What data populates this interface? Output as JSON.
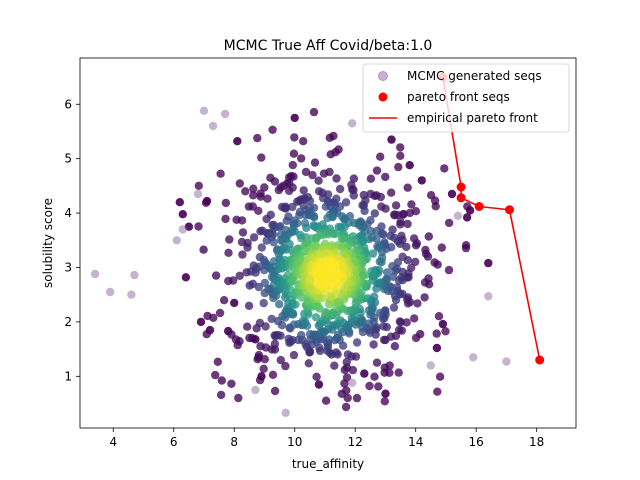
{
  "chart_data": {
    "type": "scatter",
    "title": "MCMC True Aff Covid/beta:1.0",
    "xlabel": "true_affinity",
    "ylabel": "solubility score",
    "xlim": [
      2.9,
      19.3
    ],
    "ylim": [
      0.05,
      6.85
    ],
    "xticks": [
      "4",
      "6",
      "8",
      "10",
      "12",
      "14",
      "16",
      "18"
    ],
    "xtick_values": [
      4,
      6,
      8,
      10,
      12,
      14,
      16,
      18
    ],
    "yticks": [
      "1",
      "2",
      "3",
      "4",
      "5",
      "6"
    ],
    "ytick_values": [
      1,
      2,
      3,
      4,
      5,
      6
    ],
    "grid": false,
    "legend_position": "top-right",
    "colormap": [
      "#440154",
      "#3b528b",
      "#21918c",
      "#5ec962",
      "#fde725"
    ],
    "generated_colormap_note": "",
    "series": [
      {
        "name": "MCMC generated seqs",
        "kind": "density-scatter",
        "legend_color": "#8e6a9f",
        "center": [
          11.0,
          2.9
        ],
        "spread": [
          1.6,
          0.95
        ],
        "count": 900,
        "outliers": [
          [
            3.4,
            2.88
          ],
          [
            3.9,
            2.55
          ],
          [
            4.7,
            2.86
          ],
          [
            4.6,
            2.5
          ],
          [
            7.0,
            5.88
          ],
          [
            7.7,
            5.82
          ],
          [
            7.3,
            5.6
          ],
          [
            6.8,
            4.35
          ],
          [
            9.7,
            0.33
          ],
          [
            8.7,
            0.75
          ],
          [
            15.9,
            1.35
          ],
          [
            17.0,
            1.27
          ],
          [
            14.5,
            1.2
          ],
          [
            16.4,
            2.47
          ],
          [
            11.9,
            0.88
          ],
          [
            15.0,
            6.45
          ],
          [
            11.9,
            5.65
          ],
          [
            6.1,
            3.5
          ],
          [
            6.3,
            3.7
          ],
          [
            15.4,
            3.95
          ]
        ],
        "dark_points": [
          [
            6.2,
            4.2
          ],
          [
            6.3,
            3.98
          ],
          [
            6.5,
            3.75
          ],
          [
            7.2,
            1.85
          ],
          [
            7.8,
            1.83
          ],
          [
            6.9,
            2.0
          ],
          [
            6.4,
            2.82
          ],
          [
            8.1,
            5.32
          ],
          [
            8.0,
            2.35
          ],
          [
            8.9,
            1.0
          ],
          [
            10.8,
            0.85
          ],
          [
            12.3,
            1.05
          ],
          [
            13.0,
            0.68
          ],
          [
            14.9,
            1.96
          ],
          [
            15.7,
            3.92
          ],
          [
            15.8,
            4.05
          ],
          [
            16.4,
            3.08
          ],
          [
            15.2,
            4.35
          ],
          [
            14.7,
            1.52
          ],
          [
            13.2,
            5.35
          ],
          [
            10.0,
            5.75
          ],
          [
            13.8,
            4.88
          ],
          [
            14.2,
            4.6
          ],
          [
            7.1,
            4.22
          ],
          [
            8.7,
            1.68
          ]
        ]
      },
      {
        "name": "pareto front seqs",
        "kind": "points",
        "color": "#ff0000",
        "points": [
          [
            14.9,
            6.5
          ],
          [
            15.5,
            4.48
          ],
          [
            15.5,
            4.28
          ],
          [
            16.1,
            4.12
          ],
          [
            17.1,
            4.06
          ],
          [
            18.1,
            1.3
          ]
        ]
      },
      {
        "name": "empirical pareto front",
        "kind": "line",
        "color": "#ff0000",
        "points": [
          [
            14.9,
            6.5
          ],
          [
            15.5,
            4.48
          ],
          [
            15.5,
            4.28
          ],
          [
            16.1,
            4.12
          ],
          [
            17.1,
            4.06
          ],
          [
            18.1,
            1.3
          ]
        ]
      }
    ]
  }
}
